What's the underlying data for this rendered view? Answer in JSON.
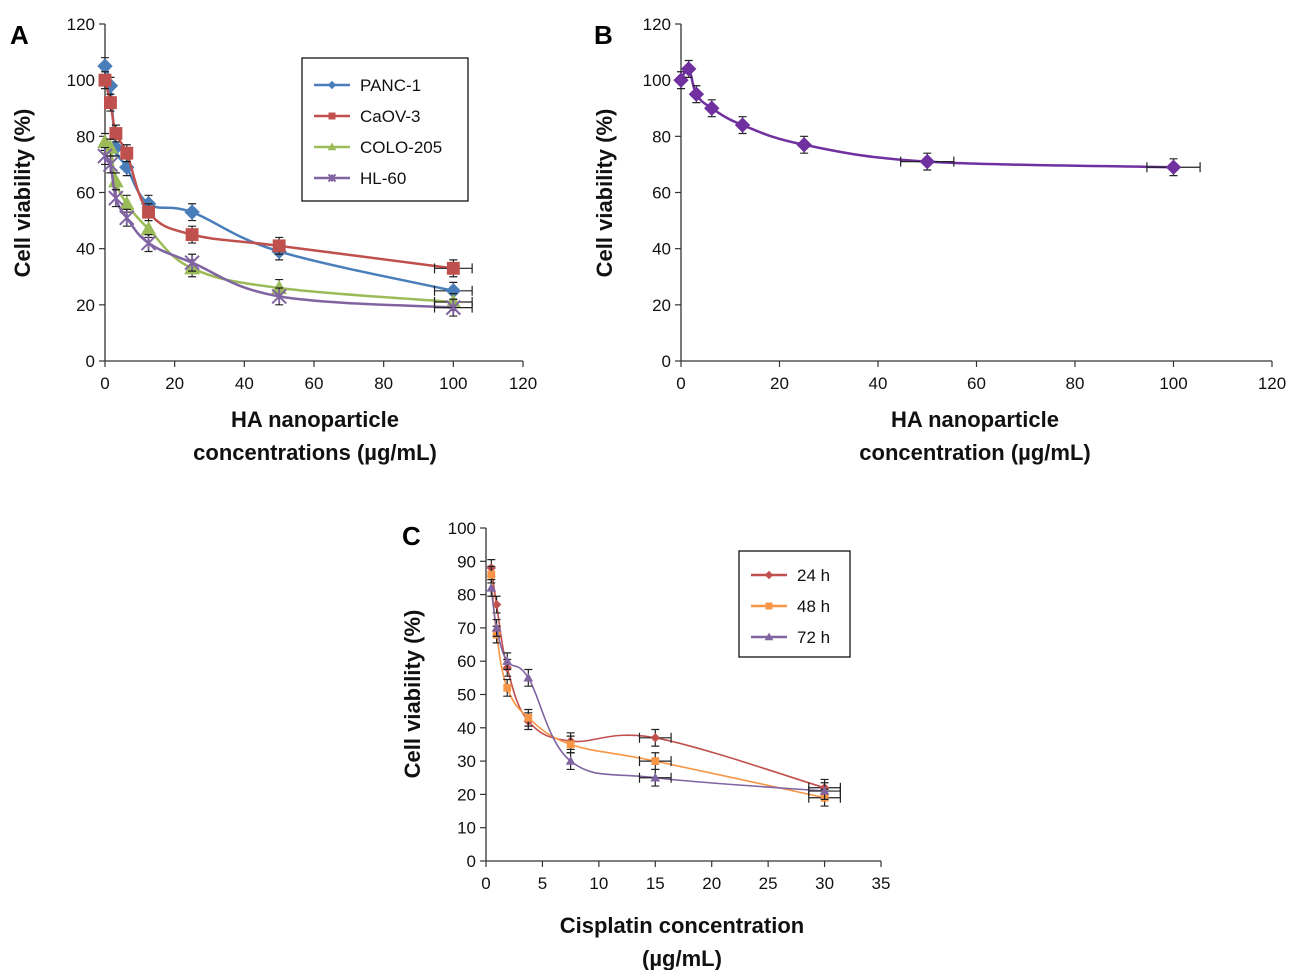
{
  "chart_data": [
    {
      "panel_label": "A",
      "type": "line",
      "xlabel_lines": [
        "HA nanoparticle",
        "concentrations (µg/mL)"
      ],
      "ylabel": "Cell viability (%)",
      "xlim": [
        0,
        120
      ],
      "ylim": [
        0,
        120
      ],
      "xticks": [
        0,
        20,
        40,
        60,
        80,
        100,
        120
      ],
      "yticks": [
        0,
        20,
        40,
        60,
        80,
        100,
        120
      ],
      "legend_position": "top-right",
      "x": [
        0,
        1.56,
        3.125,
        6.25,
        12.5,
        25,
        50,
        100
      ],
      "series": [
        {
          "name": "PANC-1",
          "color": "#4a7ebb",
          "marker": "diamond",
          "values": [
            105,
            98,
            76,
            69,
            56,
            53,
            39,
            25
          ]
        },
        {
          "name": "CaOV-3",
          "color": "#c0504d",
          "marker": "square",
          "values": [
            100,
            92,
            81,
            74,
            53,
            45,
            41,
            33
          ]
        },
        {
          "name": "COLO-205",
          "color": "#9bbb59",
          "marker": "triangle",
          "values": [
            78,
            76,
            64,
            56,
            47,
            33,
            26,
            21
          ]
        },
        {
          "name": "HL-60",
          "color": "#8064a2",
          "marker": "x",
          "values": [
            73,
            70,
            58,
            51,
            42,
            35,
            23,
            19
          ]
        }
      ]
    },
    {
      "panel_label": "B",
      "type": "line",
      "xlabel_lines": [
        "HA nanoparticle",
        "concentration (µg/mL)"
      ],
      "ylabel": "Cell viability (%)",
      "xlim": [
        0,
        120
      ],
      "ylim": [
        0,
        120
      ],
      "xticks": [
        0,
        20,
        40,
        60,
        80,
        100,
        120
      ],
      "yticks": [
        0,
        20,
        40,
        60,
        80,
        100,
        120
      ],
      "x": [
        0,
        1.56,
        3.125,
        6.25,
        12.5,
        25,
        50,
        100
      ],
      "series": [
        {
          "name": "",
          "color": "#7030a0",
          "marker": "diamond",
          "values": [
            100,
            104,
            95,
            90,
            84,
            77,
            71,
            69
          ]
        }
      ]
    },
    {
      "panel_label": "C",
      "type": "line",
      "xlabel_lines": [
        "Cisplatin concentration",
        "(µg/mL)"
      ],
      "ylabel": "Cell viability (%)",
      "xlim": [
        0,
        35
      ],
      "ylim": [
        0,
        100
      ],
      "xticks": [
        0,
        5,
        10,
        15,
        20,
        25,
        30,
        35
      ],
      "yticks": [
        0,
        10,
        20,
        30,
        40,
        50,
        60,
        70,
        80,
        90,
        100
      ],
      "legend_position": "top-right",
      "x": [
        0.47,
        0.94,
        1.88,
        3.75,
        7.5,
        15,
        30
      ],
      "series": [
        {
          "name": "24 h",
          "color": "#c0504d",
          "marker": "diamond",
          "values": [
            88,
            77,
            58,
            42,
            36,
            37,
            22
          ]
        },
        {
          "name": "48 h",
          "color": "#f79646",
          "marker": "square",
          "values": [
            86,
            68,
            52,
            43,
            35,
            30,
            19
          ]
        },
        {
          "name": "72 h",
          "color": "#8064a2",
          "marker": "triangle",
          "values": [
            82,
            70,
            60,
            55,
            30,
            25,
            21
          ]
        }
      ]
    }
  ]
}
